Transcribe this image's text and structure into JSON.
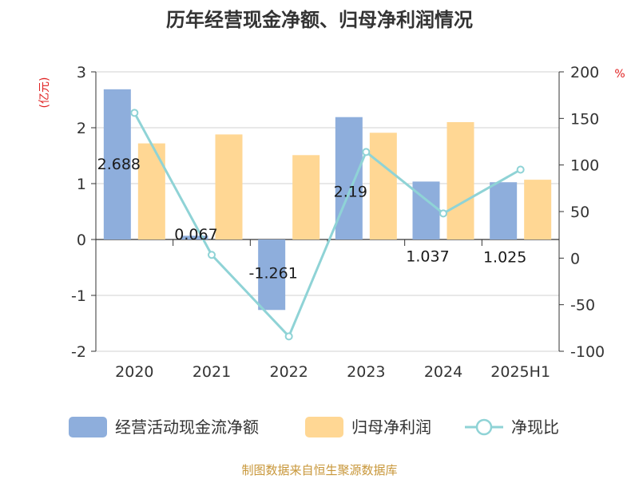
{
  "chart_data": {
    "type": "bar",
    "title": "历年经营现金净额、归母净利润情况",
    "categories": [
      "2020",
      "2021",
      "2022",
      "2023",
      "2024",
      "2025H1"
    ],
    "series": [
      {
        "name": "经营活动现金流净额",
        "kind": "bar",
        "axis": "left",
        "color": "#8eaedc",
        "values": [
          2.688,
          0.067,
          -1.261,
          2.19,
          1.037,
          1.025
        ],
        "labels": [
          "2.688",
          "0.067",
          "-1.261",
          "2.19",
          "1.037",
          "1.025"
        ]
      },
      {
        "name": "归母净利润",
        "kind": "bar",
        "axis": "left",
        "color": "#ffd794",
        "values": [
          1.72,
          1.88,
          1.51,
          1.91,
          2.1,
          1.07
        ]
      },
      {
        "name": "净现比",
        "kind": "line",
        "axis": "right",
        "color": "#8fd3d6",
        "values": [
          156,
          3.5,
          -84,
          114,
          48,
          95
        ]
      }
    ],
    "left_axis": {
      "unit": "(亿元)",
      "min": -2,
      "max": 3,
      "ticks": [
        -2,
        -1,
        0,
        1,
        2,
        3
      ]
    },
    "right_axis": {
      "unit": "%",
      "min": -100,
      "max": 200,
      "ticks": [
        -100,
        -50,
        0,
        50,
        100,
        150,
        200
      ]
    },
    "grid": true,
    "legend_position": "bottom",
    "source": "制图数据来自恒生聚源数据库"
  }
}
